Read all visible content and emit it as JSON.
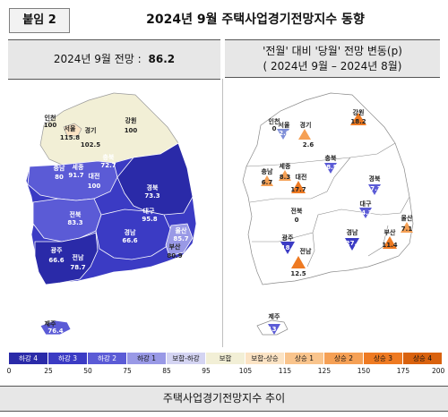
{
  "header": {
    "tag": "붙임 2",
    "title": "2024년 9월 주택사업경기전망지수 동향"
  },
  "left_panel": {
    "title_prefix": "2024년 9월 전망 :",
    "title_value": "86.2",
    "regions": [
      {
        "name": "인천",
        "value": "100"
      },
      {
        "name": "서울",
        "value": "115.8"
      },
      {
        "name": "경기",
        "value": "102.5"
      },
      {
        "name": "강원",
        "value": "100"
      },
      {
        "name": "충북",
        "value": "72.7"
      },
      {
        "name": "충남",
        "value": "80"
      },
      {
        "name": "세종",
        "value": "91.7"
      },
      {
        "name": "대전",
        "value": "100"
      },
      {
        "name": "경북",
        "value": "73.3"
      },
      {
        "name": "대구",
        "value": "95.8"
      },
      {
        "name": "울산",
        "value": "85.7"
      },
      {
        "name": "전북",
        "value": "83.3"
      },
      {
        "name": "경남",
        "value": "66.6"
      },
      {
        "name": "부산",
        "value": "80.9"
      },
      {
        "name": "광주",
        "value": "66.6"
      },
      {
        "name": "전남",
        "value": "78.7"
      },
      {
        "name": "제주",
        "value": "76.4"
      }
    ]
  },
  "right_panel": {
    "title_line1": "'전월' 대비 '당월' 전망 변동(p)",
    "title_line2": "( 2024년 9월 –  2024년 8월)",
    "regions": [
      {
        "name": "인천",
        "value": "0"
      },
      {
        "name": "서울",
        "value": "-2.6"
      },
      {
        "name": "경기",
        "value": "2.6"
      },
      {
        "name": "강원",
        "value": "18.2"
      },
      {
        "name": "충북",
        "value": "-8.5"
      },
      {
        "name": "충남",
        "value": "6.7"
      },
      {
        "name": "세종",
        "value": "8.3"
      },
      {
        "name": "대전",
        "value": "17.7"
      },
      {
        "name": "경북",
        "value": "-7.3"
      },
      {
        "name": "대구",
        "value": "-4.2"
      },
      {
        "name": "울산",
        "value": "7.1"
      },
      {
        "name": "전북",
        "value": "0"
      },
      {
        "name": "경남",
        "value": "-27.1"
      },
      {
        "name": "부산",
        "value": "11.4"
      },
      {
        "name": "광주",
        "value": "-18.6"
      },
      {
        "name": "전남",
        "value": "12.5"
      },
      {
        "name": "제주",
        "value": "-13.4"
      }
    ]
  },
  "legend": {
    "items": [
      {
        "label": "하강 4",
        "color": "#2a2aa8"
      },
      {
        "label": "하강 3",
        "color": "#3b3bc4"
      },
      {
        "label": "하강 2",
        "color": "#5b5bd6"
      },
      {
        "label": "하강 1",
        "color": "#9999e6"
      },
      {
        "label": "보합-하강",
        "color": "#d4d4f2"
      },
      {
        "label": "보합",
        "color": "#f2efd6"
      },
      {
        "label": "보합-상승",
        "color": "#fbe3c4"
      },
      {
        "label": "상승 1",
        "color": "#f9c48c"
      },
      {
        "label": "상승 2",
        "color": "#f5a055"
      },
      {
        "label": "상승 3",
        "color": "#ee7a22"
      },
      {
        "label": "상승 4",
        "color": "#d9620e"
      }
    ],
    "ticks": [
      "0",
      "25",
      "50",
      "75",
      "85",
      "95",
      "105",
      "115",
      "125",
      "150",
      "175",
      "200"
    ]
  },
  "footer": {
    "title": "주택사업경기전망지수 추이"
  }
}
